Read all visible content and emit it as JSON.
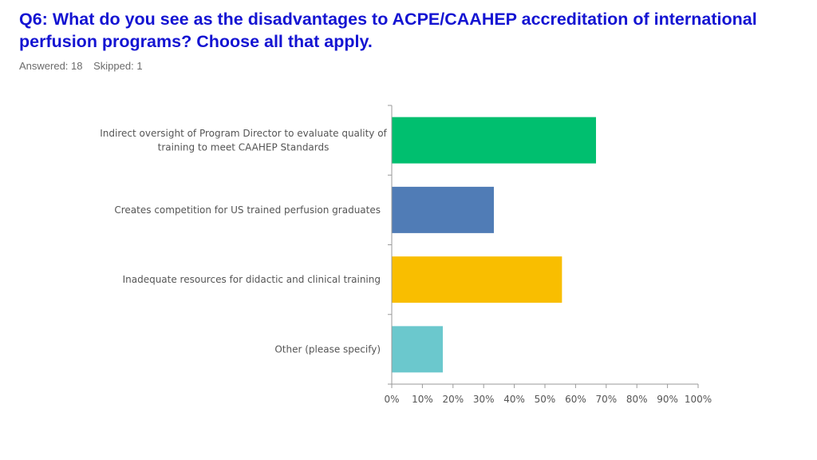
{
  "title": "Q6: What do you see as the disadvantages to ACPE/CAAHEP accreditation of international perfusion programs? Choose all that apply.",
  "answered": "Answered: 18",
  "skipped": "Skipped: 1",
  "chart_data": {
    "type": "bar",
    "orientation": "horizontal",
    "categories": [
      [
        "Indirect oversight of Program Director to evaluate quality of",
        "training to meet CAAHEP Standards"
      ],
      [
        "Creates competition for US trained perfusion graduates"
      ],
      [
        "Inadequate resources for didactic and clinical training"
      ],
      [
        "Other (please specify)"
      ]
    ],
    "values": [
      66.67,
      33.33,
      55.56,
      16.67
    ],
    "colors": [
      "#00bf6f",
      "#507cb6",
      "#f9be00",
      "#6bc8cd"
    ],
    "xlim": [
      0,
      100
    ],
    "xticks": [
      "0%",
      "10%",
      "20%",
      "30%",
      "40%",
      "50%",
      "60%",
      "70%",
      "80%",
      "90%",
      "100%"
    ],
    "grid": false,
    "title": "",
    "xlabel": "",
    "ylabel": ""
  }
}
